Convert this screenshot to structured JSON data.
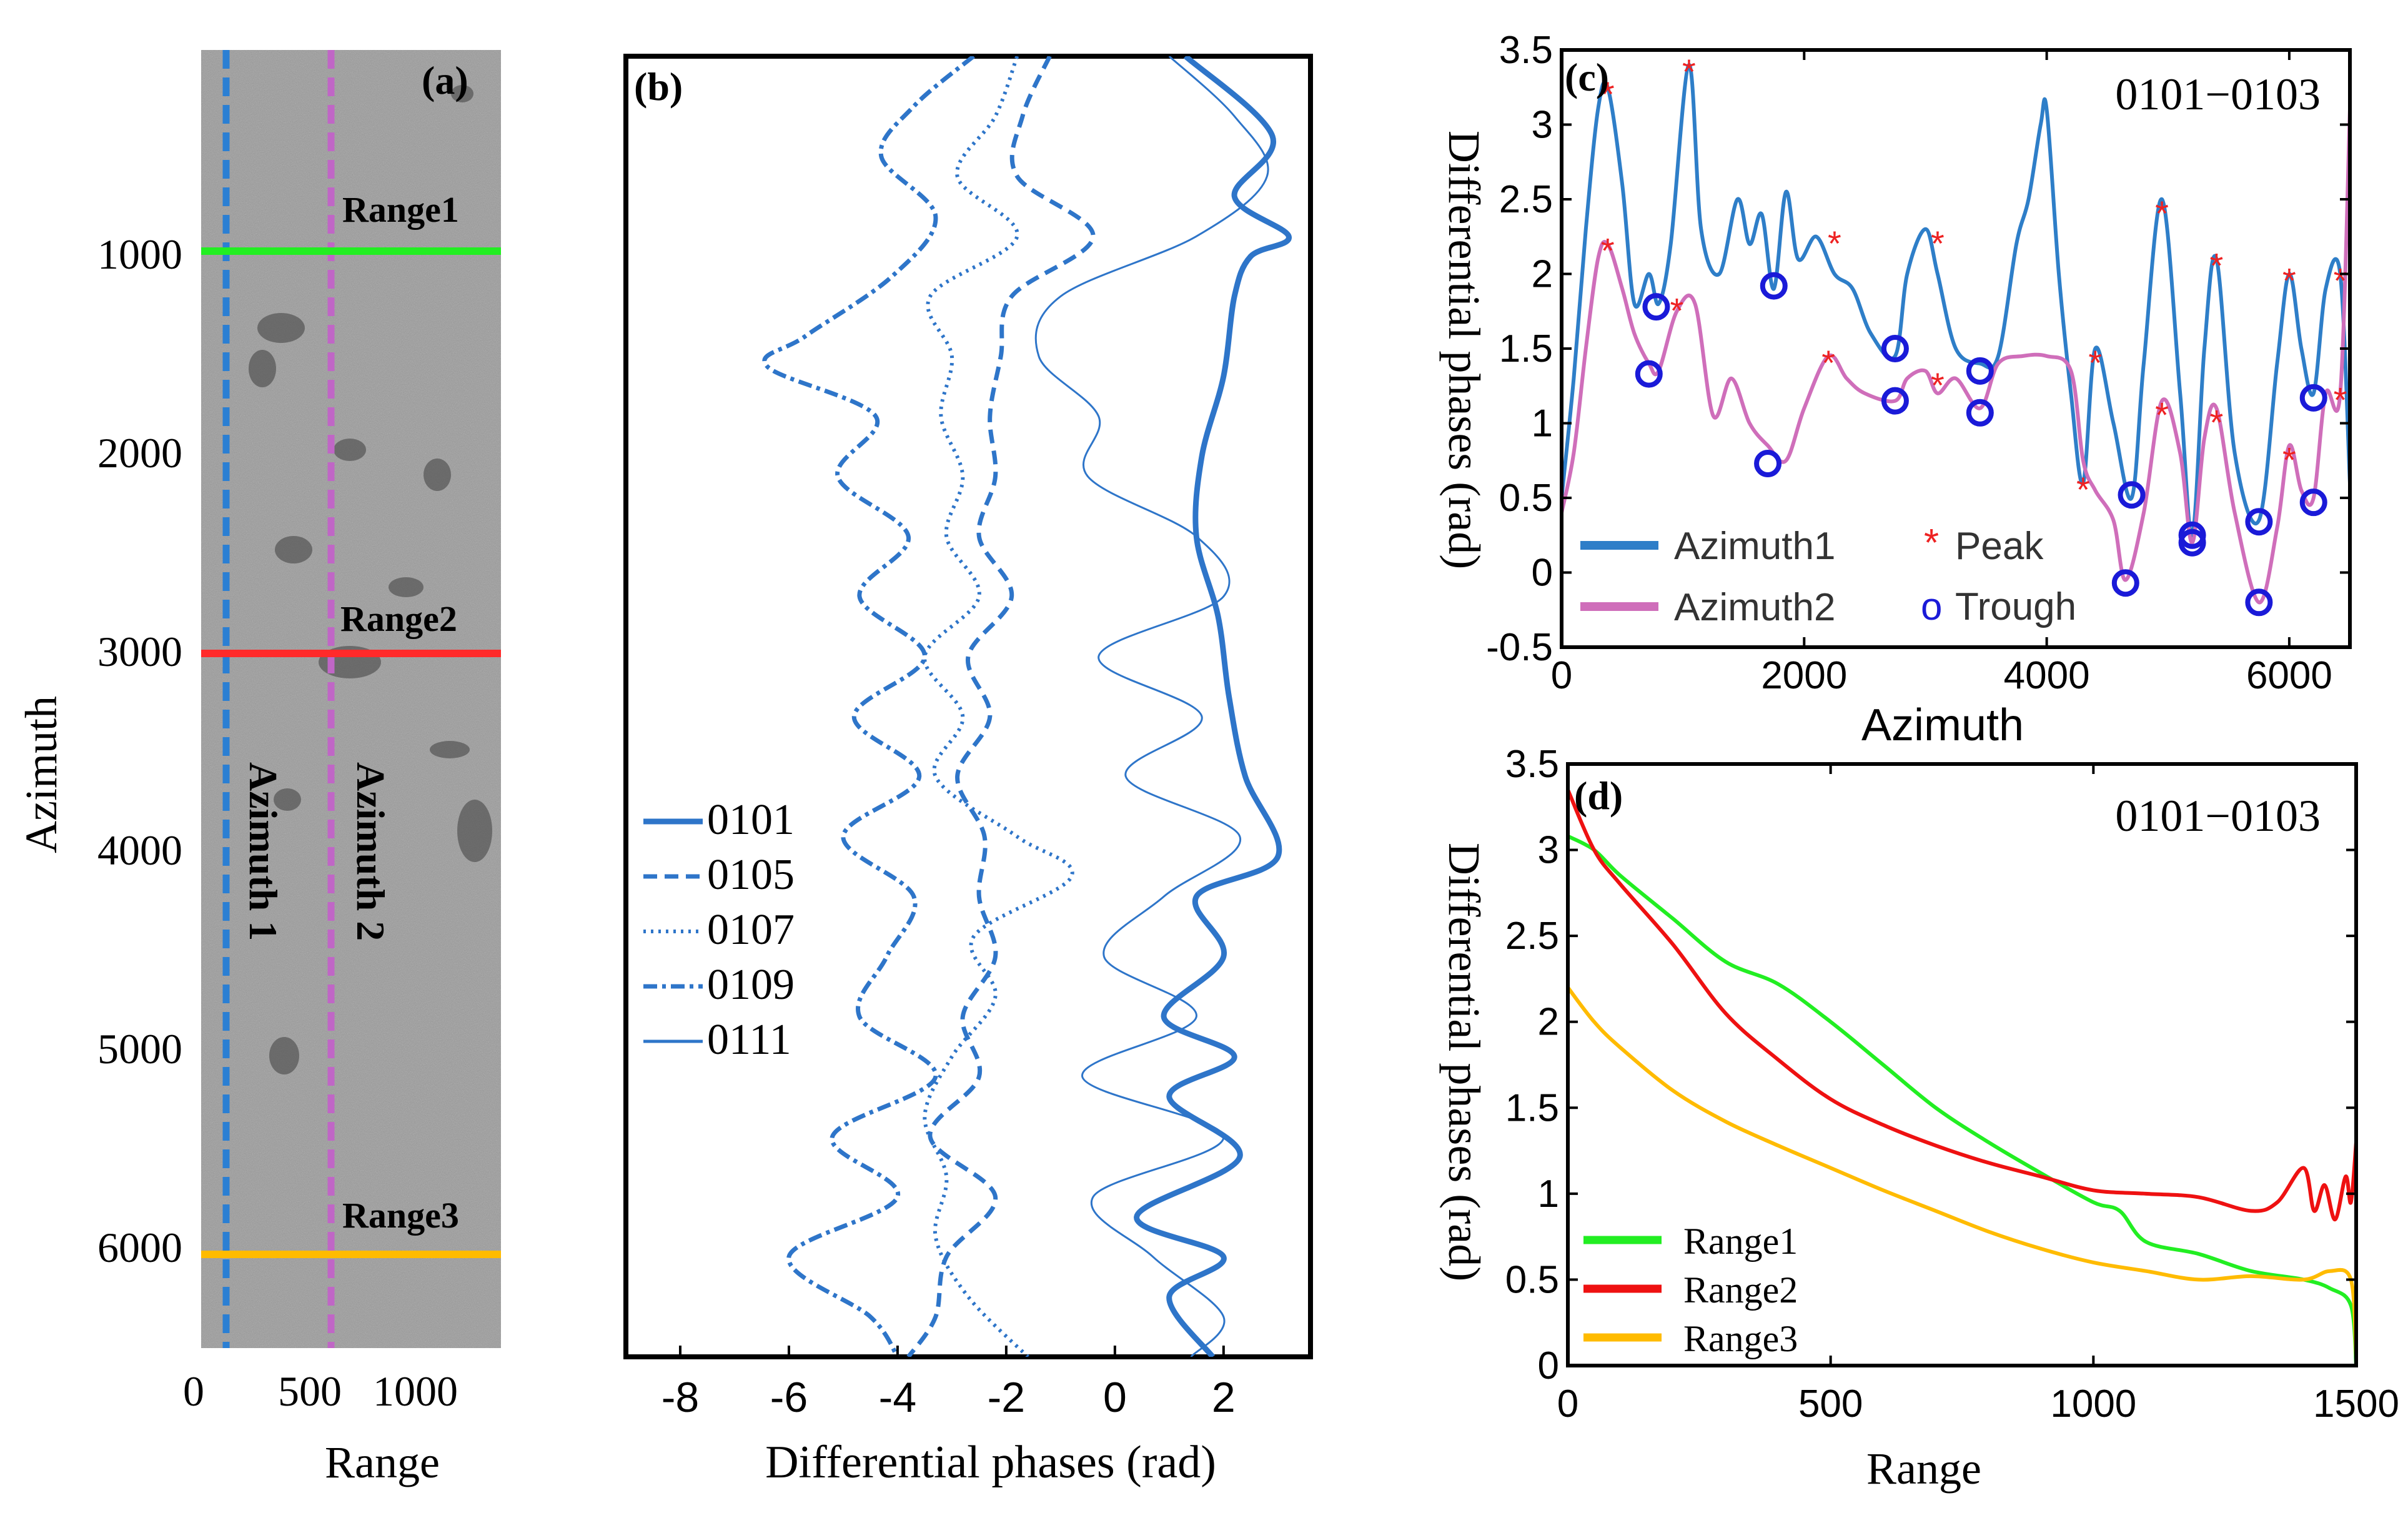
{
  "panel_a": {
    "label": "(a)",
    "ylabel": "Azimuth",
    "xlabel": "Range",
    "yticks": [
      "1000",
      "2000",
      "3000",
      "4000",
      "5000",
      "6000"
    ],
    "xticks": [
      "0",
      "500",
      "1000"
    ],
    "range_lines": [
      {
        "name": "Range1",
        "azimuth": 1000,
        "color": "#22ee22"
      },
      {
        "name": "Range2",
        "azimuth": 3000,
        "color": "#ff2a2a"
      },
      {
        "name": "Range3",
        "azimuth": 6020,
        "color": "#ffbb00"
      }
    ],
    "azimuth_lines": [
      {
        "name": "Azimuth 1",
        "range": 100,
        "color": "#2b7fd3"
      },
      {
        "name": "Azimuth 2",
        "range": 660,
        "color": "#c066c6"
      }
    ],
    "colors": {
      "sar_bg": "#9a9a9a"
    }
  },
  "chart_data": [
    {
      "id": "b",
      "type": "line",
      "label": "(b)",
      "title": "",
      "xlabel": "Differential phases (rad)",
      "ylabel": "Azimuth",
      "xlim": [
        -9,
        3.6
      ],
      "ylim": [
        0,
        6500
      ],
      "xticks": [
        -8,
        -6,
        -4,
        -2,
        0,
        2
      ],
      "xtick_labels": [
        "-8",
        "-6",
        "-4",
        "-2",
        "0",
        "2"
      ],
      "legend": [
        "0101",
        "0105",
        "0107",
        "0109",
        "0111"
      ],
      "series": [
        {
          "name": "0101",
          "style": "solid-thick",
          "color": "#2e75c9",
          "azimuth": [
            0,
            400,
            700,
            900,
            1000,
            1200,
            1600,
            2000,
            2400,
            2800,
            3200,
            3600,
            4000,
            4200,
            4500,
            4800,
            5000,
            5200,
            5500,
            5800,
            6000,
            6200,
            6500
          ],
          "phase": [
            1.3,
            2.9,
            2.2,
            3.2,
            2.5,
            2.2,
            2.0,
            1.6,
            1.5,
            1.9,
            2.1,
            2.4,
            3.0,
            1.5,
            2.0,
            0.9,
            2.2,
            1.0,
            2.3,
            0.4,
            2.0,
            1.0,
            1.8
          ]
        },
        {
          "name": "0105",
          "style": "dashed",
          "color": "#2e75c9",
          "azimuth": [
            0,
            300,
            600,
            900,
            1200,
            1500,
            1800,
            2100,
            2400,
            2700,
            3000,
            3300,
            3600,
            3900,
            4200,
            4500,
            4800,
            5100,
            5400,
            5700,
            6000,
            6300,
            6500
          ],
          "phase": [
            -1.2,
            -1.7,
            -1.8,
            -0.4,
            -1.9,
            -2.1,
            -2.3,
            -2.2,
            -2.5,
            -1.9,
            -2.7,
            -2.3,
            -2.9,
            -2.4,
            -2.5,
            -2.2,
            -2.8,
            -2.5,
            -3.4,
            -2.2,
            -3.1,
            -3.3,
            -3.8
          ]
        },
        {
          "name": "0107",
          "style": "dotted",
          "color": "#2e75c9",
          "azimuth": [
            0,
            300,
            600,
            900,
            1200,
            1500,
            1800,
            2100,
            2400,
            2700,
            3000,
            3300,
            3600,
            3900,
            4100,
            4400,
            4700,
            5000,
            5300,
            5600,
            5900,
            6200,
            6500
          ],
          "phase": [
            -1.8,
            -2.2,
            -2.9,
            -1.8,
            -3.4,
            -3.0,
            -3.2,
            -2.8,
            -3.1,
            -2.5,
            -3.5,
            -2.8,
            -3.3,
            -1.8,
            -0.8,
            -2.6,
            -2.2,
            -3.0,
            -3.5,
            -3.1,
            -3.3,
            -2.7,
            -1.6
          ]
        },
        {
          "name": "0109",
          "style": "dash-dot",
          "color": "#2e75c9",
          "azimuth": [
            0,
            250,
            500,
            800,
            1100,
            1400,
            1550,
            1800,
            2100,
            2400,
            2700,
            3000,
            3300,
            3600,
            3900,
            4200,
            4500,
            4800,
            5100,
            5400,
            5700,
            6000,
            6300,
            6500
          ],
          "phase": [
            -2.6,
            -3.7,
            -4.3,
            -3.3,
            -4.1,
            -5.7,
            -6.4,
            -4.4,
            -5.1,
            -3.8,
            -4.7,
            -3.5,
            -4.8,
            -3.6,
            -5.0,
            -3.7,
            -4.2,
            -4.7,
            -3.3,
            -5.2,
            -4.0,
            -6.0,
            -4.5,
            -4.0
          ]
        },
        {
          "name": "0111",
          "style": "thin",
          "color": "#2e75c9",
          "azimuth": [
            0,
            300,
            600,
            900,
            1200,
            1500,
            1800,
            2100,
            2400,
            2700,
            3000,
            3300,
            3600,
            3900,
            4200,
            4500,
            4800,
            5100,
            5400,
            5700,
            6000,
            6300,
            6500
          ],
          "phase": [
            1.0,
            2.2,
            2.8,
            1.5,
            -1.0,
            -1.4,
            -0.3,
            -0.5,
            1.5,
            2.0,
            -0.3,
            1.6,
            0.2,
            2.3,
            0.9,
            -0.2,
            1.5,
            -0.6,
            2.0,
            -0.4,
            0.7,
            2.0,
            1.4
          ]
        }
      ]
    },
    {
      "id": "c",
      "type": "line",
      "label": "(c)",
      "annotation": "0101−0103",
      "title": "",
      "xlabel": "Azimuth",
      "ylabel": "Differential phases (rad)",
      "xlim": [
        0,
        6500
      ],
      "ylim": [
        -0.5,
        3.5
      ],
      "xticks": [
        0,
        2000,
        4000,
        6000
      ],
      "xtick_labels": [
        "0",
        "2000",
        "4000",
        "6000"
      ],
      "yticks": [
        -0.5,
        0,
        0.5,
        1,
        1.5,
        2,
        2.5,
        3,
        3.5
      ],
      "ytick_labels": [
        "-0.5",
        "0",
        "0.5",
        "1",
        "1.5",
        "2",
        "2.5",
        "3",
        "3.5"
      ],
      "legend": [
        "Azimuth1",
        "Azimuth2"
      ],
      "marker_legend": {
        "peak_symbol": "*",
        "peak_label": "Peak",
        "trough_symbol": "o",
        "trough_label": "Trough"
      },
      "series": [
        {
          "name": "Azimuth1",
          "color": "#2e7ec8",
          "x": [
            0,
            100,
            200,
            300,
            380,
            500,
            600,
            720,
            800,
            900,
            1050,
            1150,
            1300,
            1450,
            1550,
            1650,
            1750,
            1850,
            1950,
            2100,
            2250,
            2400,
            2550,
            2750,
            2850,
            3000,
            3100,
            3250,
            3450,
            3600,
            3750,
            3850,
            3950,
            4000,
            4100,
            4200,
            4300,
            4400,
            4550,
            4700,
            4800,
            4950,
            5100,
            5200,
            5300,
            5400,
            5550,
            5750,
            5900,
            6000,
            6100,
            6200,
            6300,
            6420,
            6500
          ],
          "y": [
            0.5,
            1.3,
            2.3,
            3.1,
            3.25,
            2.6,
            1.8,
            2.0,
            1.8,
            2.2,
            3.4,
            2.3,
            2.0,
            2.5,
            2.2,
            2.4,
            1.9,
            2.55,
            2.1,
            2.25,
            2.0,
            1.9,
            1.6,
            1.45,
            2.0,
            2.3,
            2.0,
            1.5,
            1.4,
            1.45,
            2.2,
            2.5,
            3.0,
            3.1,
            2.0,
            1.2,
            0.6,
            1.5,
            1.0,
            0.5,
            1.4,
            2.5,
            1.2,
            0.25,
            1.5,
            2.1,
            0.8,
            0.35,
            1.4,
            2.0,
            1.5,
            1.2,
            1.9,
            2.0,
            0.6
          ]
        },
        {
          "name": "Azimuth2",
          "color": "#cf6eba",
          "x": [
            0,
            100,
            200,
            300,
            380,
            500,
            600,
            720,
            800,
            950,
            1100,
            1250,
            1400,
            1550,
            1700,
            1850,
            2000,
            2200,
            2350,
            2500,
            2750,
            2850,
            3000,
            3100,
            3250,
            3450,
            3600,
            3800,
            4000,
            4200,
            4300,
            4400,
            4550,
            4650,
            4800,
            4950,
            5100,
            5200,
            5300,
            5400,
            5550,
            5750,
            5900,
            6000,
            6100,
            6200,
            6300,
            6420,
            6500
          ],
          "y": [
            0.4,
            0.8,
            1.5,
            2.1,
            2.2,
            1.9,
            1.6,
            1.4,
            1.35,
            1.75,
            1.8,
            1.05,
            1.3,
            1.0,
            0.85,
            0.75,
            1.1,
            1.45,
            1.3,
            1.2,
            1.15,
            1.3,
            1.35,
            1.2,
            1.3,
            1.1,
            1.4,
            1.45,
            1.45,
            1.35,
            0.75,
            0.55,
            0.35,
            -0.05,
            0.4,
            1.15,
            0.8,
            0.2,
            0.9,
            1.1,
            0.4,
            -0.2,
            0.3,
            0.85,
            0.55,
            0.5,
            1.2,
            1.2,
            3.1
          ]
        }
      ],
      "peaks": [
        {
          "x": 380,
          "y": 3.25
        },
        {
          "x": 1050,
          "y": 3.4
        },
        {
          "x": 380,
          "y": 2.2
        },
        {
          "x": 950,
          "y": 1.8
        },
        {
          "x": 2250,
          "y": 2.25
        },
        {
          "x": 3100,
          "y": 2.25
        },
        {
          "x": 2200,
          "y": 1.45
        },
        {
          "x": 3100,
          "y": 1.3
        },
        {
          "x": 4400,
          "y": 1.45
        },
        {
          "x": 4300,
          "y": 0.6
        },
        {
          "x": 4950,
          "y": 2.45
        },
        {
          "x": 4950,
          "y": 1.1
        },
        {
          "x": 5400,
          "y": 2.1
        },
        {
          "x": 5400,
          "y": 1.05
        },
        {
          "x": 6000,
          "y": 2.0
        },
        {
          "x": 6000,
          "y": 0.8
        },
        {
          "x": 6420,
          "y": 2.0
        },
        {
          "x": 6420,
          "y": 1.2
        }
      ],
      "troughs": [
        {
          "x": 780,
          "y": 1.78
        },
        {
          "x": 720,
          "y": 1.33
        },
        {
          "x": 1750,
          "y": 1.92
        },
        {
          "x": 1700,
          "y": 0.73
        },
        {
          "x": 2750,
          "y": 1.5
        },
        {
          "x": 2750,
          "y": 1.15
        },
        {
          "x": 3450,
          "y": 1.35
        },
        {
          "x": 3450,
          "y": 1.07
        },
        {
          "x": 4700,
          "y": 0.52
        },
        {
          "x": 4650,
          "y": -0.07
        },
        {
          "x": 5200,
          "y": 0.25
        },
        {
          "x": 5200,
          "y": 0.2
        },
        {
          "x": 5750,
          "y": 0.34
        },
        {
          "x": 5750,
          "y": -0.2
        },
        {
          "x": 6200,
          "y": 1.17
        },
        {
          "x": 6200,
          "y": 0.47
        }
      ]
    },
    {
      "id": "d",
      "type": "line",
      "label": "(d)",
      "annotation": "0101−0103",
      "title": "",
      "xlabel": "Range",
      "ylabel": "Differential phases (rad)",
      "xlim": [
        0,
        1500
      ],
      "ylim": [
        0,
        3.5
      ],
      "xticks": [
        0,
        500,
        1000,
        1500
      ],
      "xtick_labels": [
        "0",
        "500",
        "1000",
        "1500"
      ],
      "yticks": [
        0,
        0.5,
        1,
        1.5,
        2,
        2.5,
        3,
        3.5
      ],
      "ytick_labels": [
        "0",
        "0.5",
        "1",
        "1.5",
        "2",
        "2.5",
        "3",
        "3.5"
      ],
      "legend": [
        "Range1",
        "Range2",
        "Range3"
      ],
      "series": [
        {
          "name": "Range1",
          "color": "#22ee22",
          "x": [
            0,
            50,
            100,
            200,
            300,
            400,
            500,
            600,
            700,
            800,
            900,
            1000,
            1050,
            1100,
            1200,
            1300,
            1400,
            1450,
            1490,
            1500
          ],
          "y": [
            3.08,
            3.0,
            2.85,
            2.6,
            2.35,
            2.22,
            2.0,
            1.75,
            1.5,
            1.3,
            1.12,
            0.95,
            0.9,
            0.72,
            0.65,
            0.55,
            0.5,
            0.45,
            0.35,
            0.0
          ]
        },
        {
          "name": "Range2",
          "color": "#ee1111",
          "x": [
            0,
            50,
            100,
            200,
            300,
            400,
            500,
            600,
            700,
            800,
            900,
            1000,
            1100,
            1200,
            1300,
            1350,
            1400,
            1420,
            1440,
            1460,
            1480,
            1490,
            1500
          ],
          "y": [
            3.35,
            3.0,
            2.8,
            2.45,
            2.05,
            1.78,
            1.55,
            1.4,
            1.28,
            1.18,
            1.1,
            1.02,
            1.0,
            0.98,
            0.9,
            0.95,
            1.15,
            0.9,
            1.05,
            0.85,
            1.1,
            0.95,
            1.3
          ]
        },
        {
          "name": "Range3",
          "color": "#ffbb00",
          "x": [
            0,
            50,
            100,
            200,
            300,
            400,
            500,
            600,
            700,
            800,
            900,
            1000,
            1100,
            1200,
            1300,
            1400,
            1450,
            1490,
            1500
          ],
          "y": [
            2.2,
            2.0,
            1.85,
            1.6,
            1.42,
            1.28,
            1.15,
            1.02,
            0.9,
            0.78,
            0.68,
            0.6,
            0.55,
            0.5,
            0.52,
            0.5,
            0.55,
            0.5,
            0.05
          ]
        }
      ]
    }
  ]
}
